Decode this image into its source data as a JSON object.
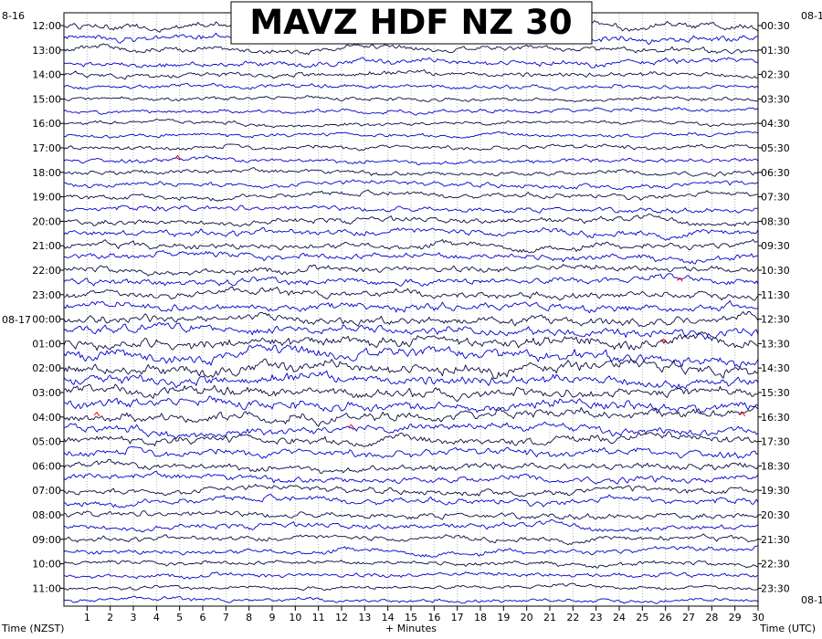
{
  "chart_data": {
    "type": "line",
    "title": "MAVZ HDF NZ 30",
    "left_axis_label": "Time (NZST)",
    "right_axis_label": "Time (UTC)",
    "x_axis_label": "+ Minutes",
    "x_range": [
      0,
      30
    ],
    "x_ticks": [
      "1",
      "2",
      "3",
      "4",
      "5",
      "6",
      "7",
      "8",
      "9",
      "10",
      "11",
      "12",
      "13",
      "14",
      "15",
      "16",
      "17",
      "18",
      "19",
      "20",
      "21",
      "22",
      "23",
      "24",
      "25",
      "26",
      "27",
      "28",
      "29",
      "30"
    ],
    "left_date_top": "8-16",
    "left_date_mid": "08-17",
    "right_date_top": "08-1",
    "right_date_bottom": "08-1",
    "left_hour_labels": [
      "12:00",
      "13:00",
      "14:00",
      "15:00",
      "16:00",
      "17:00",
      "18:00",
      "19:00",
      "20:00",
      "21:00",
      "22:00",
      "23:00",
      "00:00",
      "01:00",
      "02:00",
      "03:00",
      "04:00",
      "05:00",
      "06:00",
      "07:00",
      "08:00",
      "09:00",
      "10:00",
      "11:00"
    ],
    "right_hour_labels": [
      "00:30",
      "01:30",
      "02:30",
      "03:30",
      "04:30",
      "05:30",
      "06:30",
      "07:30",
      "08:30",
      "09:30",
      "10:30",
      "11:30",
      "12:30",
      "13:30",
      "14:30",
      "15:30",
      "16:30",
      "17:30",
      "18:30",
      "19:30",
      "20:30",
      "21:30",
      "22:30",
      "23:30"
    ],
    "traces_per_hour": 2,
    "trace_colors": [
      "#0a0a40",
      "#0000cc"
    ],
    "grid": "dotted vertical per minute",
    "trace_activity": [
      1.1,
      1.0,
      0.9,
      0.9,
      0.8,
      0.7,
      0.6,
      0.6,
      0.6,
      0.6,
      0.7,
      0.7,
      0.7,
      0.8,
      0.8,
      0.8,
      0.9,
      1.0,
      1.0,
      1.0,
      1.0,
      1.1,
      1.1,
      1.2,
      1.3,
      1.4,
      1.6,
      1.8,
      1.7,
      1.6,
      1.6,
      1.5,
      1.4,
      1.3,
      1.3,
      1.2,
      1.1,
      1.0,
      1.0,
      1.0,
      0.9,
      0.9,
      0.8,
      0.8,
      0.7,
      0.7,
      0.6,
      0.6
    ],
    "colors": {
      "line_dark": "#0a0a40",
      "line_blue": "#0000cc",
      "spike": "#ff0000",
      "grid": "#b0b0b0"
    }
  }
}
